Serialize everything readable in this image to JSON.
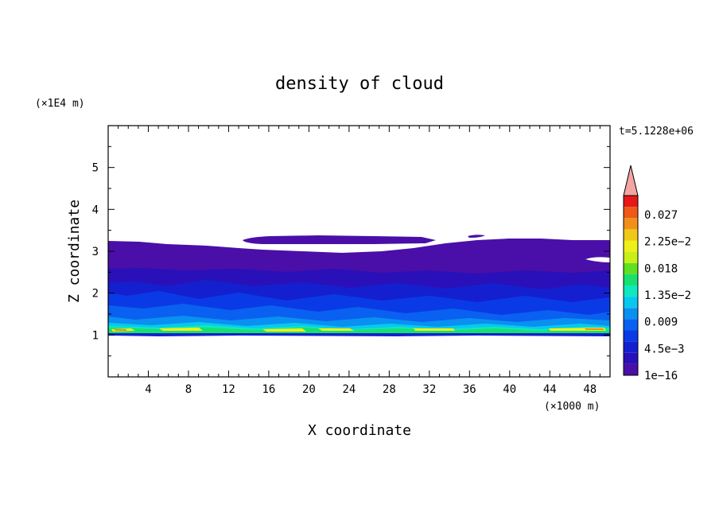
{
  "chart_data": {
    "type": "contour",
    "title": "density of cloud",
    "xlabel": "X coordinate",
    "ylabel": "Z coordinate",
    "x_unit": "(×1000 m)",
    "y_unit": "(×1E4 m)",
    "time_label": "t=5.1228e+06",
    "xlim": [
      0,
      50
    ],
    "ylim": [
      0,
      6
    ],
    "x_ticks": [
      4,
      8,
      12,
      16,
      20,
      24,
      28,
      32,
      36,
      40,
      44,
      48
    ],
    "y_ticks": [
      1,
      2,
      3,
      4,
      5
    ],
    "colorbar": {
      "labels": [
        "0.027",
        "2.25e−2",
        "0.018",
        "1.35e−2",
        "0.009",
        "4.5e−3",
        "1e−16"
      ],
      "colors": [
        "#4a0fa8",
        "#2a10b8",
        "#1420d0",
        "#0a3ae6",
        "#0a60f0",
        "#0a90f0",
        "#08c8f0",
        "#10e8c0",
        "#18e070",
        "#60e020",
        "#c8f018",
        "#f0f018",
        "#f0c818",
        "#f09018",
        "#f05818",
        "#e81818"
      ],
      "extend_color": "#f4a4a4"
    },
    "layers": [
      {
        "level": "1e-16",
        "color": "#4a0fa8"
      },
      {
        "level": "2.25e-3",
        "color": "#2a10b8"
      },
      {
        "level": "4.5e-3",
        "color": "#1420d0"
      },
      {
        "level": "6.75e-3",
        "color": "#0a3ae6"
      },
      {
        "level": "0.009",
        "color": "#0a60f0"
      },
      {
        "level": "1.125e-2",
        "color": "#0a90f0"
      },
      {
        "level": "1.35e-2",
        "color": "#08c8f0"
      },
      {
        "level": "1.575e-2",
        "color": "#10e8c0"
      },
      {
        "level": "0.018",
        "color": "#18e070"
      },
      {
        "level": "2.25e-2",
        "color": "#f0f018"
      }
    ]
  }
}
